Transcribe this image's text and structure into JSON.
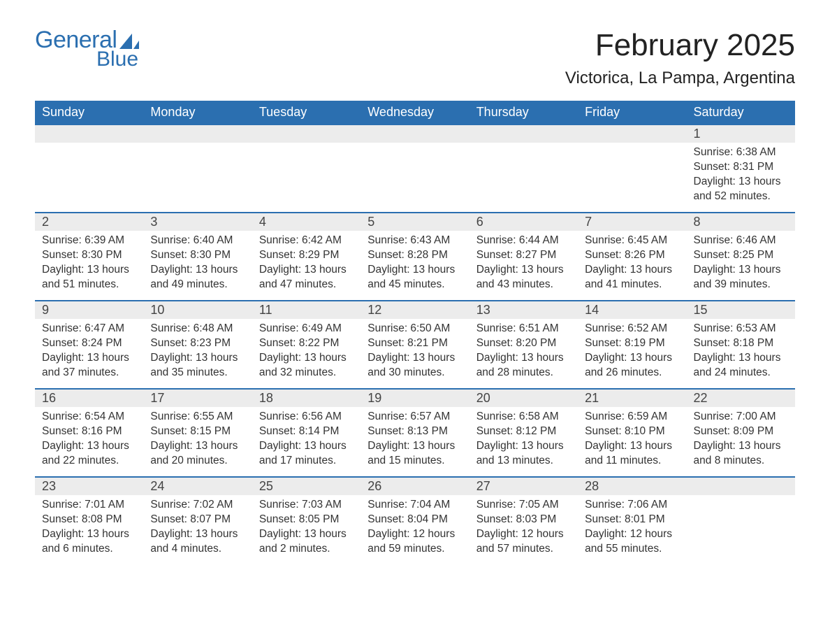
{
  "logo": {
    "text_a": "General",
    "text_b": "Blue",
    "sail_color": "#2b6fb0"
  },
  "title": "February 2025",
  "location": "Victorica, La Pampa, Argentina",
  "colors": {
    "header_bg": "#2b6fb0",
    "header_fg": "#ffffff",
    "row_sep": "#2b6fb0",
    "daynum_bg": "#ececec",
    "text": "#333333",
    "page_bg": "#ffffff"
  },
  "fonts": {
    "title_size_pt": 33,
    "location_size_pt": 18,
    "header_size_pt": 14,
    "body_size_pt": 12
  },
  "day_headers": [
    "Sunday",
    "Monday",
    "Tuesday",
    "Wednesday",
    "Thursday",
    "Friday",
    "Saturday"
  ],
  "weeks": [
    [
      null,
      null,
      null,
      null,
      null,
      null,
      {
        "n": "1",
        "sunrise": "Sunrise: 6:38 AM",
        "sunset": "Sunset: 8:31 PM",
        "daylight": "Daylight: 13 hours and 52 minutes."
      }
    ],
    [
      {
        "n": "2",
        "sunrise": "Sunrise: 6:39 AM",
        "sunset": "Sunset: 8:30 PM",
        "daylight": "Daylight: 13 hours and 51 minutes."
      },
      {
        "n": "3",
        "sunrise": "Sunrise: 6:40 AM",
        "sunset": "Sunset: 8:30 PM",
        "daylight": "Daylight: 13 hours and 49 minutes."
      },
      {
        "n": "4",
        "sunrise": "Sunrise: 6:42 AM",
        "sunset": "Sunset: 8:29 PM",
        "daylight": "Daylight: 13 hours and 47 minutes."
      },
      {
        "n": "5",
        "sunrise": "Sunrise: 6:43 AM",
        "sunset": "Sunset: 8:28 PM",
        "daylight": "Daylight: 13 hours and 45 minutes."
      },
      {
        "n": "6",
        "sunrise": "Sunrise: 6:44 AM",
        "sunset": "Sunset: 8:27 PM",
        "daylight": "Daylight: 13 hours and 43 minutes."
      },
      {
        "n": "7",
        "sunrise": "Sunrise: 6:45 AM",
        "sunset": "Sunset: 8:26 PM",
        "daylight": "Daylight: 13 hours and 41 minutes."
      },
      {
        "n": "8",
        "sunrise": "Sunrise: 6:46 AM",
        "sunset": "Sunset: 8:25 PM",
        "daylight": "Daylight: 13 hours and 39 minutes."
      }
    ],
    [
      {
        "n": "9",
        "sunrise": "Sunrise: 6:47 AM",
        "sunset": "Sunset: 8:24 PM",
        "daylight": "Daylight: 13 hours and 37 minutes."
      },
      {
        "n": "10",
        "sunrise": "Sunrise: 6:48 AM",
        "sunset": "Sunset: 8:23 PM",
        "daylight": "Daylight: 13 hours and 35 minutes."
      },
      {
        "n": "11",
        "sunrise": "Sunrise: 6:49 AM",
        "sunset": "Sunset: 8:22 PM",
        "daylight": "Daylight: 13 hours and 32 minutes."
      },
      {
        "n": "12",
        "sunrise": "Sunrise: 6:50 AM",
        "sunset": "Sunset: 8:21 PM",
        "daylight": "Daylight: 13 hours and 30 minutes."
      },
      {
        "n": "13",
        "sunrise": "Sunrise: 6:51 AM",
        "sunset": "Sunset: 8:20 PM",
        "daylight": "Daylight: 13 hours and 28 minutes."
      },
      {
        "n": "14",
        "sunrise": "Sunrise: 6:52 AM",
        "sunset": "Sunset: 8:19 PM",
        "daylight": "Daylight: 13 hours and 26 minutes."
      },
      {
        "n": "15",
        "sunrise": "Sunrise: 6:53 AM",
        "sunset": "Sunset: 8:18 PM",
        "daylight": "Daylight: 13 hours and 24 minutes."
      }
    ],
    [
      {
        "n": "16",
        "sunrise": "Sunrise: 6:54 AM",
        "sunset": "Sunset: 8:16 PM",
        "daylight": "Daylight: 13 hours and 22 minutes."
      },
      {
        "n": "17",
        "sunrise": "Sunrise: 6:55 AM",
        "sunset": "Sunset: 8:15 PM",
        "daylight": "Daylight: 13 hours and 20 minutes."
      },
      {
        "n": "18",
        "sunrise": "Sunrise: 6:56 AM",
        "sunset": "Sunset: 8:14 PM",
        "daylight": "Daylight: 13 hours and 17 minutes."
      },
      {
        "n": "19",
        "sunrise": "Sunrise: 6:57 AM",
        "sunset": "Sunset: 8:13 PM",
        "daylight": "Daylight: 13 hours and 15 minutes."
      },
      {
        "n": "20",
        "sunrise": "Sunrise: 6:58 AM",
        "sunset": "Sunset: 8:12 PM",
        "daylight": "Daylight: 13 hours and 13 minutes."
      },
      {
        "n": "21",
        "sunrise": "Sunrise: 6:59 AM",
        "sunset": "Sunset: 8:10 PM",
        "daylight": "Daylight: 13 hours and 11 minutes."
      },
      {
        "n": "22",
        "sunrise": "Sunrise: 7:00 AM",
        "sunset": "Sunset: 8:09 PM",
        "daylight": "Daylight: 13 hours and 8 minutes."
      }
    ],
    [
      {
        "n": "23",
        "sunrise": "Sunrise: 7:01 AM",
        "sunset": "Sunset: 8:08 PM",
        "daylight": "Daylight: 13 hours and 6 minutes."
      },
      {
        "n": "24",
        "sunrise": "Sunrise: 7:02 AM",
        "sunset": "Sunset: 8:07 PM",
        "daylight": "Daylight: 13 hours and 4 minutes."
      },
      {
        "n": "25",
        "sunrise": "Sunrise: 7:03 AM",
        "sunset": "Sunset: 8:05 PM",
        "daylight": "Daylight: 13 hours and 2 minutes."
      },
      {
        "n": "26",
        "sunrise": "Sunrise: 7:04 AM",
        "sunset": "Sunset: 8:04 PM",
        "daylight": "Daylight: 12 hours and 59 minutes."
      },
      {
        "n": "27",
        "sunrise": "Sunrise: 7:05 AM",
        "sunset": "Sunset: 8:03 PM",
        "daylight": "Daylight: 12 hours and 57 minutes."
      },
      {
        "n": "28",
        "sunrise": "Sunrise: 7:06 AM",
        "sunset": "Sunset: 8:01 PM",
        "daylight": "Daylight: 12 hours and 55 minutes."
      },
      null
    ]
  ]
}
